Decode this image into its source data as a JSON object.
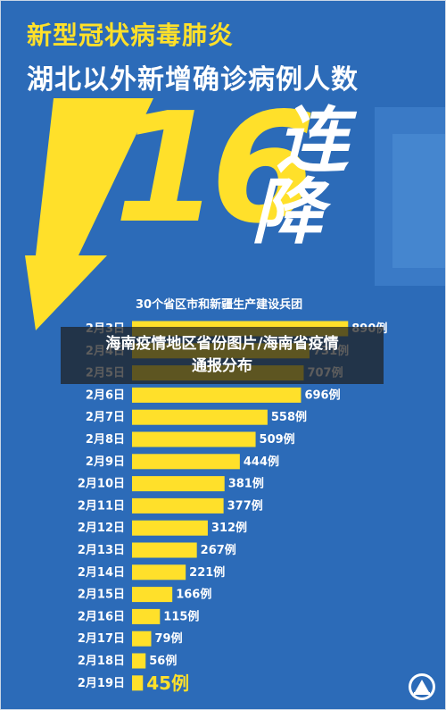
{
  "poster": {
    "title_line1": "新型冠状病毒肺炎",
    "title_line2": "湖北以外新增确诊病例人数",
    "big_number": "16",
    "big_text_1": "连",
    "big_text_2": "降",
    "subtitle": "30个省区市和新疆生产建设兵团",
    "colors": {
      "background": "#2c6bb8",
      "accent": "#ffe02a",
      "text": "#ffffff"
    },
    "logo_icon": "emblem-icon"
  },
  "banner": {
    "line1": "海南疫情地区省份图片/海南省疫情",
    "line2": "通报分布"
  },
  "chart_data": {
    "type": "bar",
    "orientation": "horizontal",
    "title": "30个省区市和新疆生产建设兵团",
    "categories": [
      "2月3日",
      "2月4日",
      "2月5日",
      "2月6日",
      "2月7日",
      "2月8日",
      "2月9日",
      "2月10日",
      "2月11日",
      "2月12日",
      "2月13日",
      "2月14日",
      "2月15日",
      "2月16日",
      "2月17日",
      "2月18日",
      "2月19日"
    ],
    "values": [
      890,
      731,
      707,
      696,
      558,
      509,
      444,
      381,
      377,
      312,
      267,
      221,
      166,
      115,
      79,
      56,
      45
    ],
    "value_labels": [
      "890例",
      "731例",
      "707例",
      "696例",
      "558例",
      "509例",
      "444例",
      "381例",
      "377例",
      "312例",
      "267例",
      "221例",
      "166例",
      "115例",
      "79例",
      "56例",
      "45例"
    ],
    "xlim": [
      0,
      900
    ],
    "grid": false,
    "legend": false,
    "bar_color": "#ffe02a"
  }
}
